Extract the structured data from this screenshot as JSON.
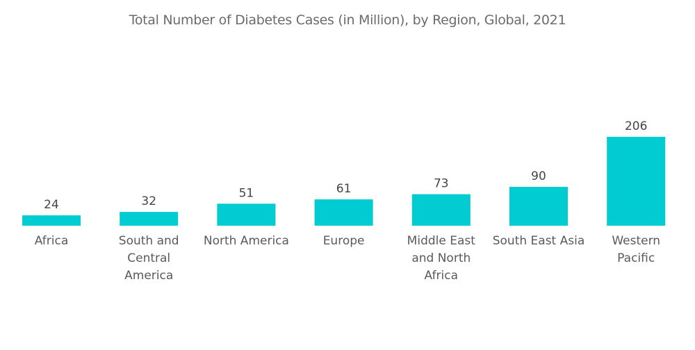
{
  "chart_data": {
    "type": "bar",
    "title": "Total Number of Diabetes Cases (in Million), by Region, Global, 2021",
    "xlabel": "",
    "ylabel": "",
    "ylim": [
      0,
      206
    ],
    "grid": false,
    "legend": "none",
    "bar_color": "#00ccd1",
    "categories": [
      [
        "Africa"
      ],
      [
        "South and",
        "Central",
        "America"
      ],
      [
        "North America"
      ],
      [
        "Europe"
      ],
      [
        "Middle East",
        "and North",
        "Africa"
      ],
      [
        "South East Asia"
      ],
      [
        "Western",
        "Pacific"
      ]
    ],
    "values": [
      24,
      32,
      51,
      61,
      73,
      90,
      206
    ],
    "data_labels": [
      "24",
      "32",
      "51",
      "61",
      "73",
      "90",
      "206"
    ]
  }
}
